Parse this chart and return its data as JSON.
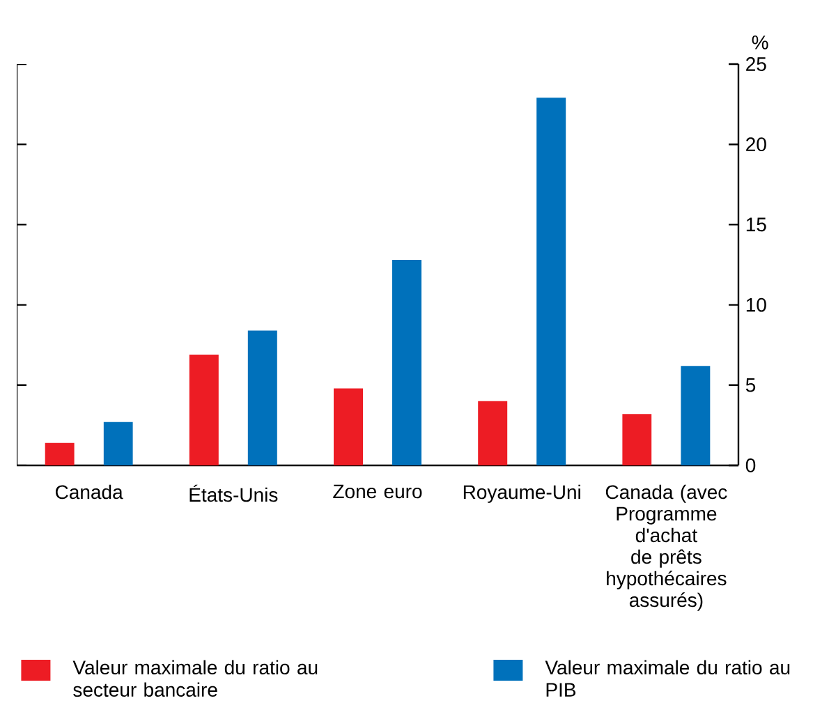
{
  "chart_data": {
    "type": "bar",
    "ylabel": "%",
    "categories": [
      "Canada",
      "États-Unis",
      "Zone euro",
      "Royaume-Uni",
      "Canada (avec Programme d'achat de prêts hypothécaires assurés)"
    ],
    "series": [
      {
        "name": "Valeur maximale du ratio au secteur bancaire",
        "color": "#ed1c24",
        "values": [
          1.4,
          6.9,
          4.8,
          4.0,
          3.2
        ]
      },
      {
        "name": "Valeur maximale du ratio au PIB",
        "color": "#0071bb",
        "values": [
          2.7,
          8.4,
          12.8,
          22.9,
          6.2
        ]
      }
    ],
    "ylim": [
      0,
      25
    ],
    "yticks": [
      0,
      5,
      10,
      15,
      20,
      25
    ],
    "grid": false,
    "legend": "bottom"
  }
}
